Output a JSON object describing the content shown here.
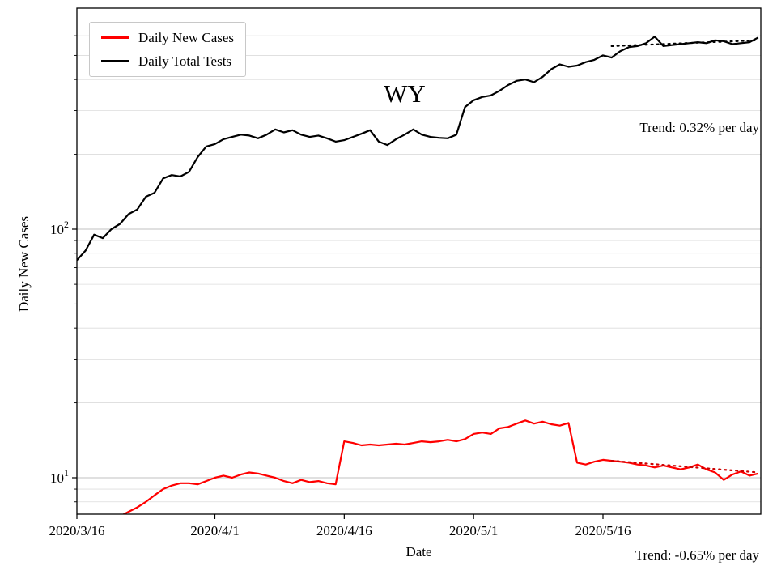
{
  "chart_data": {
    "type": "line",
    "yscale": "log",
    "title": "WY",
    "xlabel": "Date",
    "ylabel": "Daily New Cases",
    "x_start_date": "2020/3/16",
    "x_unit": "day index from 2020/3/16",
    "x_tick_days": [
      0,
      16,
      31,
      46,
      61
    ],
    "x_tick_labels": [
      "2020/3/16",
      "2020/4/1",
      "2020/4/16",
      "2020/5/1",
      "2020/5/16"
    ],
    "ylim": [
      7.1,
      775
    ],
    "y_major_ticks": [
      10,
      100
    ],
    "y_minor_gridlines": [
      8,
      9,
      20,
      30,
      40,
      50,
      60,
      70,
      80,
      90,
      200,
      300,
      400,
      500,
      600,
      700
    ],
    "grid": "horizontal",
    "legend_position": "upper left",
    "series": [
      {
        "name": "Daily New Cases",
        "color": "#ff0000",
        "values": [
          null,
          null,
          null,
          null,
          null,
          7.0,
          7.3,
          7.6,
          8.0,
          8.5,
          9.0,
          9.3,
          9.5,
          9.5,
          9.4,
          9.7,
          10.0,
          10.2,
          10.0,
          10.3,
          10.5,
          10.4,
          10.2,
          10.0,
          9.7,
          9.5,
          9.8,
          9.6,
          9.7,
          9.5,
          9.4,
          14.0,
          13.8,
          13.5,
          13.6,
          13.5,
          13.6,
          13.7,
          13.6,
          13.8,
          14.0,
          13.9,
          14.0,
          14.2,
          14.0,
          14.3,
          15.0,
          15.2,
          15.0,
          15.8,
          16.0,
          16.5,
          17.0,
          16.5,
          16.8,
          16.4,
          16.2,
          16.6,
          11.5,
          11.3,
          11.6,
          11.8,
          11.7,
          11.6,
          11.5,
          11.3,
          11.2,
          11.0,
          11.2,
          11.0,
          10.8,
          11.0,
          11.3,
          10.8,
          10.5,
          9.8,
          10.3,
          10.6,
          10.2,
          10.4
        ]
      },
      {
        "name": "Daily Total Tests",
        "color": "#000000",
        "values": [
          75,
          82,
          95,
          92,
          100,
          105,
          115,
          120,
          135,
          140,
          160,
          165,
          163,
          170,
          195,
          215,
          220,
          230,
          235,
          240,
          238,
          232,
          240,
          252,
          245,
          250,
          240,
          235,
          238,
          232,
          225,
          228,
          235,
          242,
          250,
          225,
          218,
          230,
          240,
          252,
          240,
          235,
          233,
          232,
          240,
          310,
          330,
          340,
          345,
          360,
          380,
          395,
          400,
          390,
          410,
          440,
          460,
          450,
          455,
          470,
          480,
          500,
          490,
          520,
          540,
          545,
          560,
          595,
          545,
          550,
          555,
          560,
          565,
          560,
          575,
          570,
          555,
          560,
          565,
          590
        ]
      }
    ],
    "trend_lines": [
      {
        "for": "Daily Total Tests",
        "label": "Trend: 0.32% per day",
        "rate_percent_per_day": 0.32,
        "color": "#000000",
        "style": "dotted",
        "start_day": 62,
        "end_day": 79,
        "start_value": 545,
        "end_value": 575
      },
      {
        "for": "Daily New Cases",
        "label": "Trend: -0.65% per day",
        "rate_percent_per_day": -0.65,
        "color": "#cc0000",
        "style": "dotted",
        "start_day": 62,
        "end_day": 79,
        "start_value": 11.7,
        "end_value": 10.5
      }
    ]
  }
}
